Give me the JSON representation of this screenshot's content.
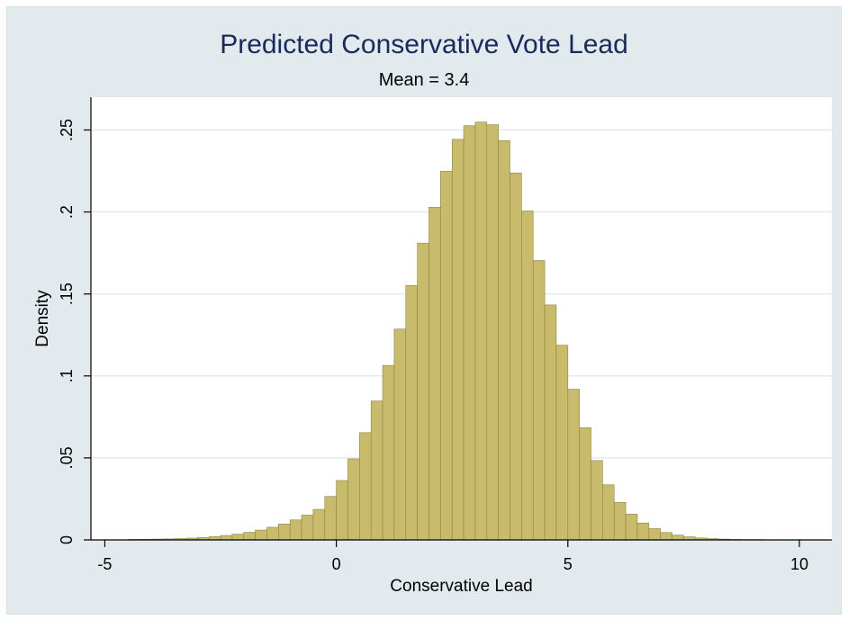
{
  "chart_data": {
    "type": "bar",
    "title": "Predicted Conservative Vote Lead",
    "subtitle": "Mean = 3.4",
    "xlabel": "Conservative Lead",
    "ylabel": "Density",
    "xlim": [
      -5.3,
      10.7
    ],
    "ylim": [
      0,
      0.27
    ],
    "xticks": [
      -5,
      0,
      5,
      10
    ],
    "xtick_labels": [
      "-5",
      "0",
      "5",
      "10"
    ],
    "yticks": [
      0,
      0.05,
      0.1,
      0.15,
      0.2,
      0.25
    ],
    "ytick_labels": [
      "0",
      ".05",
      ".1",
      ".15",
      ".2",
      ".25"
    ],
    "grid": true,
    "bar_color": "#c8bb6c",
    "bar_edge_color": "#8f8444",
    "plot_background": "#ffffff",
    "figure_background": "#e3eaee",
    "grid_color": "#e3eaee",
    "title_color": "#1b2a5c",
    "bin_width": 0.25,
    "bin_starts": [
      -4.5,
      -4.25,
      -4.0,
      -3.75,
      -3.5,
      -3.25,
      -3.0,
      -2.75,
      -2.5,
      -2.25,
      -2.0,
      -1.75,
      -1.5,
      -1.25,
      -1.0,
      -0.75,
      -0.5,
      -0.25,
      0.0,
      0.25,
      0.5,
      0.75,
      1.0,
      1.25,
      1.5,
      1.75,
      2.0,
      2.25,
      2.5,
      2.75,
      3.0,
      3.25,
      3.5,
      3.75,
      4.0,
      4.25,
      4.5,
      4.75,
      5.0,
      5.25,
      5.5,
      5.75,
      6.0,
      6.25,
      6.5,
      6.75,
      7.0,
      7.25,
      7.5,
      7.75,
      8.0,
      8.25,
      8.5,
      8.75,
      9.0,
      9.25,
      9.5,
      9.75
    ],
    "values": [
      0.0003,
      0.0004,
      0.0005,
      0.0006,
      0.0008,
      0.0011,
      0.0015,
      0.002,
      0.0027,
      0.0035,
      0.0046,
      0.006,
      0.0077,
      0.0097,
      0.0122,
      0.0151,
      0.0186,
      0.0265,
      0.0362,
      0.0494,
      0.0654,
      0.0847,
      0.1064,
      0.1286,
      0.1552,
      0.181,
      0.2029,
      0.2248,
      0.2443,
      0.2526,
      0.2548,
      0.2532,
      0.2435,
      0.2238,
      0.2006,
      0.1704,
      0.1433,
      0.1187,
      0.0919,
      0.0684,
      0.0484,
      0.0336,
      0.0229,
      0.0157,
      0.0103,
      0.0069,
      0.0045,
      0.0029,
      0.0019,
      0.0012,
      0.0008,
      0.0005,
      0.0003,
      0.0002,
      0.0002,
      0.0001,
      0.0001,
      0.0001
    ]
  }
}
